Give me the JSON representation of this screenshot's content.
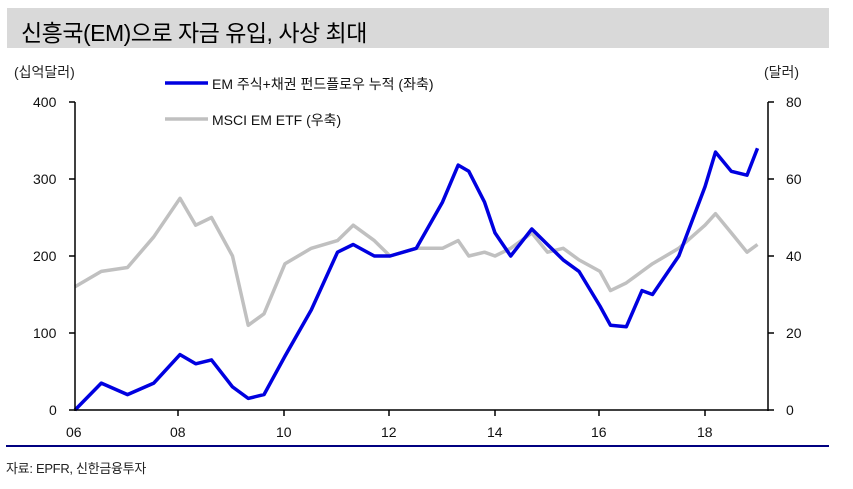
{
  "header": {
    "title": "신흥국(EM)으로 자금 유입, 사상 최대"
  },
  "source": "자료: EPFR, 신한금융투자",
  "colors": {
    "title_bg": "#d9d9d9",
    "flow_series": "#0000e0",
    "etf_series": "#c0c0c0",
    "rule": "#000080"
  },
  "axis_units": {
    "left": "(십억달러)",
    "right": "(달러)"
  },
  "legend": [
    {
      "label": "EM 주식+채권 펀드플로우 누적 (좌축)",
      "color": "#0000e0"
    },
    {
      "label": "MSCI EM ETF (우축)",
      "color": "#c0c0c0"
    }
  ],
  "chart_data": {
    "type": "line",
    "title": "신흥국(EM)으로 자금 유입, 사상 최대",
    "xlabel": "",
    "ylabel_left": "(십억달러)",
    "ylabel_right": "(달러)",
    "x_tick_labels": [
      "06",
      "08",
      "10",
      "12",
      "14",
      "16",
      "18"
    ],
    "y_left_ticks": [
      "0",
      "100",
      "200",
      "300",
      "400"
    ],
    "y_right_ticks": [
      "0",
      "20",
      "40",
      "60",
      "80"
    ],
    "ylim_left": [
      0,
      400
    ],
    "ylim_right": [
      0,
      80
    ],
    "grid": false,
    "legend_position": "top-center",
    "x": [
      2006.0,
      2006.5,
      2007.0,
      2007.5,
      2008.0,
      2008.3,
      2008.6,
      2009.0,
      2009.3,
      2009.6,
      2010.0,
      2010.5,
      2011.0,
      2011.3,
      2011.7,
      2012.0,
      2012.5,
      2013.0,
      2013.3,
      2013.5,
      2013.8,
      2014.0,
      2014.3,
      2014.7,
      2015.0,
      2015.3,
      2015.6,
      2016.0,
      2016.2,
      2016.5,
      2016.8,
      2017.0,
      2017.5,
      2018.0,
      2018.2,
      2018.5,
      2018.8,
      2019.0
    ],
    "series": [
      {
        "name": "EM 주식+채권 펀드플로우 누적 (좌축)",
        "axis": "left",
        "values": [
          0,
          35,
          20,
          35,
          72,
          60,
          65,
          30,
          15,
          20,
          70,
          130,
          205,
          215,
          200,
          200,
          210,
          270,
          318,
          310,
          270,
          230,
          200,
          235,
          215,
          195,
          180,
          135,
          110,
          108,
          155,
          150,
          200,
          290,
          335,
          310,
          305,
          340
        ]
      },
      {
        "name": "MSCI EM ETF (우축)",
        "axis": "right",
        "values": [
          32,
          36,
          37,
          45,
          55,
          48,
          50,
          40,
          22,
          25,
          38,
          42,
          44,
          48,
          44,
          40,
          42,
          42,
          44,
          40,
          41,
          40,
          42,
          46,
          41,
          42,
          39,
          36,
          31,
          33,
          36,
          38,
          42,
          48,
          51,
          46,
          41,
          43
        ]
      }
    ]
  }
}
